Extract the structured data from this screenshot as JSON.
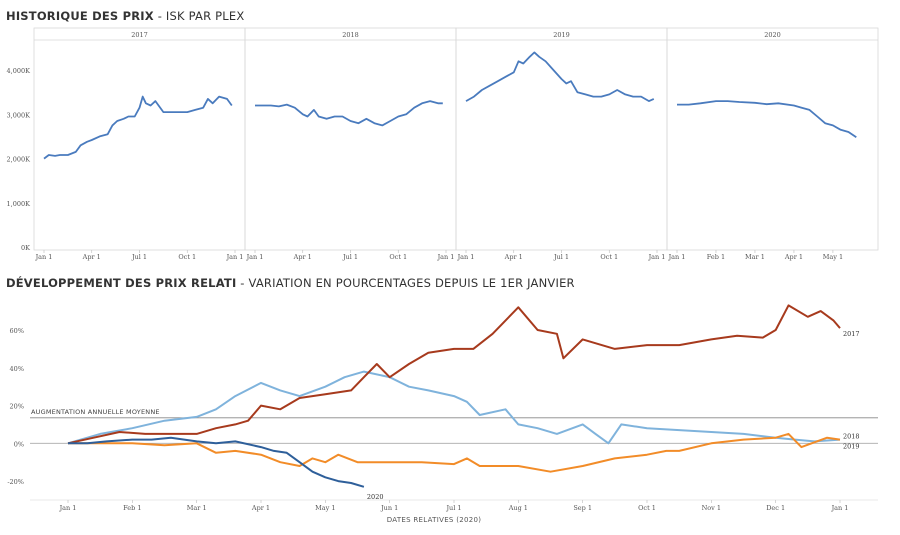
{
  "header": {
    "title1_bold": "HISTORIQUE DES PRIX",
    "title1_sub": "ISK PAR PLEX",
    "title2_bold": "DÉVELOPPEMENT DES PRIX RELATI",
    "title2_sub": "VARIATION EN POURCENTAGES DEPUIS LE 1ER JANVIER"
  },
  "chart_data": [
    {
      "type": "line",
      "title": "HISTORIQUE DES PRIX - ISK PAR PLEX",
      "ylabel": "",
      "ylim": [
        0,
        4500
      ],
      "y_ticks": [
        "0K",
        "1,000K",
        "2,000K",
        "3,000K",
        "4,000K"
      ],
      "y_tick_values": [
        0,
        1000,
        2000,
        3000,
        4000
      ],
      "grid": false,
      "color": "#4a7bbe",
      "panels": [
        {
          "label": "2017",
          "x_ticks": [
            "Jan 1",
            "Apr 1",
            "Jul 1",
            "Oct 1",
            "Jan 1"
          ],
          "x_tick_months": [
            0,
            3,
            6,
            9,
            12
          ],
          "span_months": 12,
          "x": [
            0,
            0.3,
            0.7,
            1,
            1.5,
            2,
            2.3,
            2.7,
            3,
            3.5,
            4,
            4.3,
            4.6,
            5,
            5.3,
            5.7,
            6,
            6.2,
            6.4,
            6.7,
            7,
            7.5,
            8,
            8.5,
            9,
            9.5,
            10,
            10.3,
            10.6,
            11,
            11.5,
            11.8
          ],
          "values": [
            2000,
            2080,
            2060,
            2080,
            2080,
            2150,
            2300,
            2380,
            2420,
            2500,
            2550,
            2750,
            2850,
            2900,
            2950,
            2950,
            3150,
            3400,
            3250,
            3200,
            3300,
            3050,
            3050,
            3050,
            3050,
            3100,
            3150,
            3350,
            3250,
            3400,
            3350,
            3200
          ]
        },
        {
          "label": "2018",
          "x_ticks": [
            "Jan 1",
            "Apr 1",
            "Jul 1",
            "Oct 1",
            "Jan 1"
          ],
          "x_tick_months": [
            0,
            3,
            6,
            9,
            12
          ],
          "span_months": 12,
          "x": [
            0,
            0.5,
            1,
            1.5,
            2,
            2.5,
            3,
            3.3,
            3.7,
            4,
            4.5,
            5,
            5.5,
            6,
            6.5,
            7,
            7.5,
            8,
            8.5,
            9,
            9.5,
            10,
            10.5,
            11,
            11.5,
            11.8
          ],
          "values": [
            3200,
            3200,
            3200,
            3180,
            3220,
            3150,
            3000,
            2950,
            3100,
            2950,
            2900,
            2950,
            2950,
            2850,
            2800,
            2900,
            2800,
            2750,
            2850,
            2950,
            3000,
            3150,
            3250,
            3300,
            3250,
            3250
          ]
        },
        {
          "label": "2019",
          "x_ticks": [
            "Jan 1",
            "Apr 1",
            "Jul 1",
            "Oct 1",
            "Jan 1"
          ],
          "x_tick_months": [
            0,
            3,
            6,
            9,
            12
          ],
          "span_months": 12,
          "x": [
            0,
            0.5,
            1,
            1.5,
            2,
            2.5,
            3,
            3.3,
            3.6,
            4,
            4.3,
            4.6,
            5,
            5.5,
            6,
            6.3,
            6.6,
            7,
            7.5,
            8,
            8.5,
            9,
            9.5,
            10,
            10.5,
            11,
            11.5,
            11.8
          ],
          "values": [
            3300,
            3400,
            3550,
            3650,
            3750,
            3850,
            3950,
            4200,
            4150,
            4300,
            4400,
            4300,
            4200,
            4000,
            3800,
            3700,
            3750,
            3500,
            3450,
            3400,
            3400,
            3450,
            3550,
            3450,
            3400,
            3400,
            3300,
            3350
          ]
        },
        {
          "label": "2020",
          "x_ticks": [
            "Jan 1",
            "Feb 1",
            "Mar 1",
            "Apr 1",
            "May 1"
          ],
          "x_tick_months": [
            0,
            1,
            2,
            3,
            4
          ],
          "span_months": 4.9,
          "x": [
            0,
            0.3,
            0.6,
            1,
            1.3,
            1.6,
            2,
            2.3,
            2.6,
            3,
            3.2,
            3.4,
            3.6,
            3.8,
            4,
            4.2,
            4.4,
            4.6
          ],
          "values": [
            3220,
            3220,
            3250,
            3300,
            3300,
            3280,
            3260,
            3230,
            3250,
            3200,
            3150,
            3100,
            2950,
            2800,
            2750,
            2650,
            2600,
            2480
          ]
        }
      ]
    },
    {
      "type": "line",
      "title": "DÉVELOPPEMENT DES PRIX RELATI - VARIATION EN POURCENTAGES DEPUIS LE 1ER JANVIER",
      "xlabel": "DATES RELATIVES (2020)",
      "ylabel": "",
      "ylim": [
        -30,
        78
      ],
      "y_ticks": [
        "-20%",
        "0%",
        "20%",
        "40%",
        "60%"
      ],
      "y_tick_values": [
        -20,
        0,
        20,
        40,
        60
      ],
      "x_ticks": [
        "Jan 1",
        "Feb 1",
        "Mar 1",
        "Apr 1",
        "May 1",
        "Jun 1",
        "Jul 1",
        "Aug 1",
        "Sep 1",
        "Oct 1",
        "Nov 1",
        "Dec 1",
        "Jan 1"
      ],
      "x_tick_months": [
        0,
        1,
        2,
        3,
        4,
        5,
        6,
        7,
        8,
        9,
        10,
        11,
        12
      ],
      "grid": false,
      "reference_line": {
        "label": "AUGMENTATION ANNUELLE MOYENNE",
        "value": 13.5,
        "color": "#888888"
      },
      "zero_line": {
        "value": 0,
        "color": "#aaaaaa"
      },
      "series": [
        {
          "name": "2017",
          "color": "#a73a1d",
          "x": [
            0,
            0.4,
            0.8,
            1.2,
            1.6,
            2,
            2.3,
            2.6,
            2.8,
            3,
            3.3,
            3.6,
            4,
            4.4,
            4.6,
            4.8,
            5,
            5.3,
            5.6,
            6,
            6.3,
            6.6,
            7,
            7.3,
            7.6,
            7.7,
            8,
            8.5,
            9,
            9.5,
            10,
            10.4,
            10.8,
            11,
            11.2,
            11.5,
            11.7,
            11.9,
            12
          ],
          "values": [
            0,
            3,
            6,
            5,
            5,
            5,
            8,
            10,
            12,
            20,
            18,
            24,
            26,
            28,
            35,
            42,
            35,
            42,
            48,
            50,
            50,
            58,
            72,
            60,
            58,
            45,
            55,
            50,
            52,
            52,
            55,
            57,
            56,
            60,
            73,
            67,
            70,
            65,
            61
          ]
        },
        {
          "name": "2018",
          "color": "#f28c28",
          "x": [
            0,
            0.5,
            1,
            1.5,
            2,
            2.3,
            2.6,
            3,
            3.3,
            3.6,
            3.8,
            4,
            4.2,
            4.5,
            5,
            5.5,
            6,
            6.2,
            6.4,
            7,
            7.5,
            8,
            8.5,
            9,
            9.3,
            9.5,
            10,
            10.5,
            11,
            11.2,
            11.4,
            11.8,
            12
          ],
          "values": [
            0,
            0,
            0,
            -1,
            0,
            -5,
            -4,
            -6,
            -10,
            -12,
            -8,
            -10,
            -6,
            -10,
            -10,
            -10,
            -11,
            -8,
            -12,
            -12,
            -15,
            -12,
            -8,
            -6,
            -4,
            -4,
            0,
            2,
            3,
            5,
            -2,
            3,
            2
          ]
        },
        {
          "name": "2019",
          "color": "#7fb3dc",
          "x": [
            0,
            0.5,
            1,
            1.5,
            2,
            2.3,
            2.6,
            3,
            3.3,
            3.6,
            4,
            4.3,
            4.6,
            5,
            5.3,
            5.6,
            6,
            6.2,
            6.4,
            6.8,
            7,
            7.3,
            7.6,
            8,
            8.2,
            8.4,
            8.6,
            9,
            9.5,
            10,
            10.5,
            11,
            11.3,
            11.6,
            12
          ],
          "values": [
            0,
            5,
            8,
            12,
            14,
            18,
            25,
            32,
            28,
            25,
            30,
            35,
            38,
            35,
            30,
            28,
            25,
            22,
            15,
            18,
            10,
            8,
            5,
            10,
            5,
            0,
            10,
            8,
            7,
            6,
            5,
            3,
            2,
            1,
            2
          ]
        },
        {
          "name": "2020",
          "color": "#2e5f9a",
          "x": [
            0,
            0.3,
            0.6,
            1,
            1.3,
            1.6,
            2,
            2.3,
            2.6,
            3,
            3.2,
            3.4,
            3.6,
            3.8,
            4,
            4.2,
            4.4,
            4.6
          ],
          "values": [
            0,
            0,
            1,
            2,
            2,
            3,
            1,
            0,
            1,
            -2,
            -4,
            -5,
            -10,
            -15,
            -18,
            -20,
            -21,
            -23
          ]
        }
      ]
    }
  ]
}
